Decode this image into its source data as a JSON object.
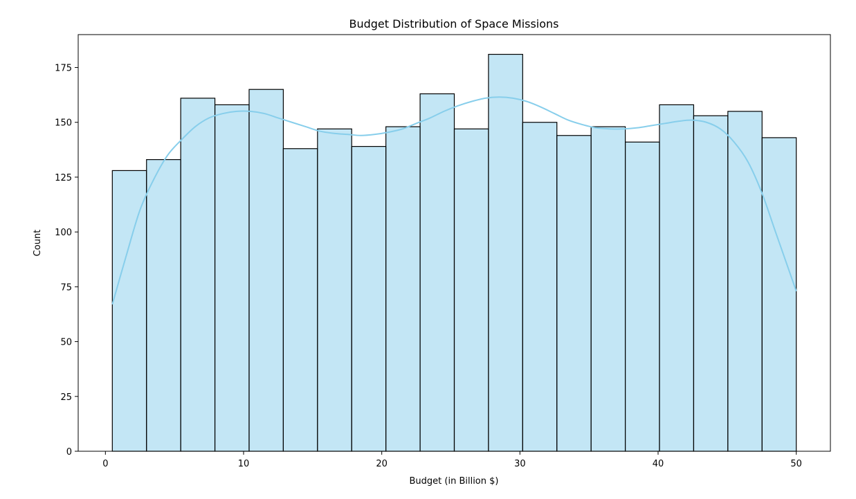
{
  "chart_data": {
    "type": "bar",
    "title": "Budget Distribution of Space Missions",
    "xlabel": "Budget (in Billion $)",
    "ylabel": "Count",
    "xlim": [
      -1.97,
      52.47
    ],
    "ylim": [
      0,
      190
    ],
    "xticks": [
      0,
      10,
      20,
      30,
      40,
      50
    ],
    "yticks": [
      0,
      25,
      50,
      75,
      100,
      125,
      150,
      175
    ],
    "grid": false,
    "legend": "none",
    "bins": {
      "start": 0.5,
      "end": 50.0,
      "edges": [
        0.5,
        2.975,
        5.45,
        7.925,
        10.4,
        12.875,
        15.35,
        17.825,
        20.3,
        22.775,
        25.25,
        27.725,
        30.2,
        32.675,
        35.15,
        37.625,
        40.1,
        42.575,
        45.05,
        47.525,
        50.0
      ],
      "counts": [
        128,
        133,
        161,
        158,
        165,
        138,
        147,
        139,
        148,
        163,
        147,
        181,
        150,
        144,
        148,
        141,
        158,
        153,
        155,
        143
      ]
    },
    "kde": {
      "x": [
        0.5,
        1.5,
        2.5,
        3.5,
        4.5,
        5.5,
        6.5,
        7.5,
        8.5,
        9.5,
        10.5,
        11.5,
        12.5,
        13.5,
        14.5,
        15.5,
        16.5,
        17.5,
        18.5,
        19.5,
        20.5,
        21.5,
        22.5,
        23.5,
        24.5,
        25.5,
        26.5,
        27.5,
        28.5,
        29.5,
        30.5,
        31.5,
        32.5,
        33.5,
        34.5,
        35.5,
        36.5,
        37.5,
        38.5,
        39.5,
        40.5,
        41.5,
        42.5,
        43.5,
        44.5,
        45.5,
        46.5,
        47.5,
        48.5,
        49.5,
        50.0
      ],
      "y": [
        67,
        89,
        110,
        124,
        135,
        142,
        148,
        152,
        154,
        155,
        155,
        154,
        152,
        150,
        148,
        146,
        145,
        144.5,
        144,
        144.5,
        145.5,
        147,
        149.5,
        152,
        155,
        157.5,
        159.5,
        161,
        161.5,
        161,
        159.5,
        157,
        154,
        151,
        149,
        147.5,
        147,
        147,
        147.5,
        148.5,
        149.5,
        150.5,
        151,
        150,
        147,
        141,
        132,
        118,
        100,
        82,
        73
      ]
    },
    "colors": {
      "bar_fill": "#87ceeb",
      "bar_fill_opacity": 0.5,
      "bar_edge": "#000000",
      "kde_line": "#87ceeb"
    }
  }
}
